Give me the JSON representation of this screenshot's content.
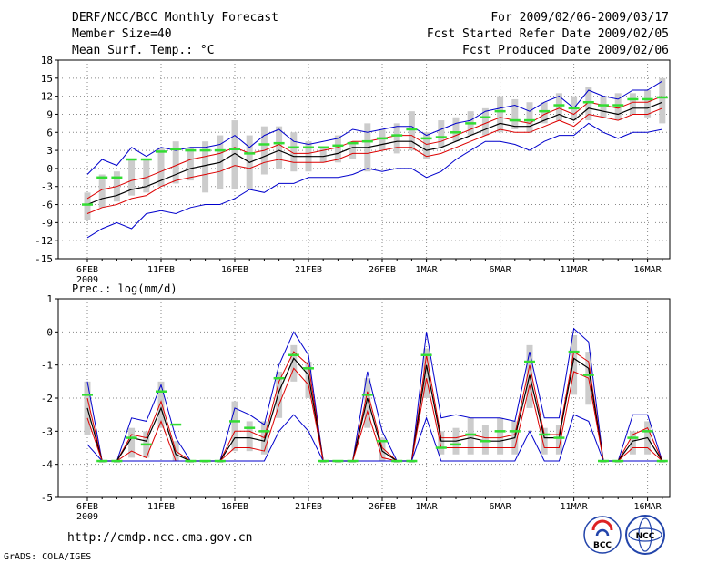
{
  "header": {
    "title": "DERF/NCC/BCC Monthly Forecast",
    "member_size": "Member Size=40",
    "variable": "Mean Surf. Temp.: °C",
    "period": "For 2009/02/06-2009/03/17",
    "started": "Fcst Started Refer Date 2009/02/05",
    "produced": "Fcst Produced Date 2009/02/06"
  },
  "footer": {
    "url": "http://cmdp.ncc.cma.gov.cn",
    "credit": "GrADS: COLA/IGES",
    "logo_bcc": "BCC",
    "logo_ncc": "NCC"
  },
  "colors": {
    "envelope": "#0000cc",
    "quartile": "#dd0000",
    "median": "#000000",
    "observed": "#33dd33",
    "box": "#cccccc",
    "grid": "#888888"
  },
  "x_labels": [
    {
      "day": 0,
      "label": "6FEB",
      "sub": "2009"
    },
    {
      "day": 5,
      "label": "11FEB"
    },
    {
      "day": 10,
      "label": "16FEB"
    },
    {
      "day": 15,
      "label": "21FEB"
    },
    {
      "day": 20,
      "label": "26FEB"
    },
    {
      "day": 23,
      "label": "1MAR"
    },
    {
      "day": 28,
      "label": "6MAR"
    },
    {
      "day": 33,
      "label": "11MAR"
    },
    {
      "day": 38,
      "label": "16MAR"
    }
  ],
  "chart_data": [
    {
      "type": "line",
      "title": "Mean Surf. Temp.: °C",
      "ylim": [
        -15,
        18
      ],
      "yticks": [
        -15,
        -12,
        -9,
        -6,
        -3,
        0,
        3,
        6,
        9,
        12,
        15,
        18
      ],
      "grid": true,
      "x": [
        0,
        1,
        2,
        3,
        4,
        5,
        6,
        7,
        8,
        9,
        10,
        11,
        12,
        13,
        14,
        15,
        16,
        17,
        18,
        19,
        20,
        21,
        22,
        23,
        24,
        25,
        26,
        27,
        28,
        29,
        30,
        31,
        32,
        33,
        34,
        35,
        36,
        37,
        38,
        39
      ],
      "series": [
        {
          "name": "max",
          "values": [
            -1.0,
            1.5,
            0.5,
            3.5,
            2.0,
            3.5,
            3.0,
            3.5,
            3.5,
            4.0,
            5.5,
            3.5,
            5.5,
            6.5,
            4.5,
            4.0,
            4.5,
            5.0,
            6.5,
            6.0,
            6.5,
            7.0,
            7.0,
            5.5,
            6.5,
            7.5,
            8.0,
            9.5,
            10.0,
            10.5,
            9.5,
            11.0,
            12.0,
            10.0,
            13.0,
            12.0,
            11.5,
            13.0,
            13.0,
            14.5
          ]
        },
        {
          "name": "q75",
          "values": [
            -5.0,
            -3.5,
            -3.0,
            -2.0,
            -1.5,
            -0.5,
            0.5,
            1.5,
            2.0,
            2.5,
            3.5,
            2.5,
            3.0,
            4.0,
            2.5,
            2.5,
            3.0,
            3.5,
            4.5,
            4.5,
            5.0,
            5.5,
            5.5,
            4.0,
            4.5,
            5.5,
            6.5,
            7.5,
            8.5,
            8.0,
            7.5,
            9.0,
            10.0,
            9.0,
            11.0,
            10.5,
            10.0,
            11.0,
            11.0,
            12.0
          ]
        },
        {
          "name": "median",
          "values": [
            -6.0,
            -5.0,
            -4.5,
            -3.5,
            -3.0,
            -2.0,
            -1.0,
            0.0,
            0.5,
            1.0,
            2.5,
            1.0,
            2.0,
            3.0,
            2.0,
            2.0,
            2.0,
            2.5,
            3.5,
            3.5,
            4.0,
            4.5,
            4.5,
            3.0,
            3.5,
            4.5,
            5.5,
            6.5,
            7.5,
            7.0,
            7.0,
            8.0,
            9.0,
            8.0,
            10.0,
            9.5,
            9.0,
            10.0,
            10.0,
            11.0
          ]
        },
        {
          "name": "q25",
          "values": [
            -7.5,
            -6.5,
            -6.0,
            -5.0,
            -4.5,
            -3.0,
            -2.0,
            -1.5,
            -1.0,
            -0.5,
            0.5,
            0.0,
            1.0,
            1.5,
            1.0,
            1.0,
            1.0,
            1.5,
            2.5,
            2.5,
            3.0,
            3.5,
            3.5,
            2.0,
            2.5,
            3.5,
            4.5,
            5.5,
            6.5,
            6.0,
            6.0,
            7.0,
            8.0,
            7.0,
            9.0,
            8.5,
            8.0,
            9.0,
            9.0,
            10.0
          ]
        },
        {
          "name": "min",
          "values": [
            -11.5,
            -10.0,
            -9.0,
            -10.0,
            -7.5,
            -7.0,
            -7.5,
            -6.5,
            -6.0,
            -6.0,
            -5.0,
            -3.5,
            -4.0,
            -2.5,
            -2.5,
            -1.5,
            -1.5,
            -1.5,
            -1.0,
            0.0,
            -0.5,
            0.0,
            0.0,
            -1.5,
            -0.5,
            1.5,
            3.0,
            4.5,
            4.5,
            4.0,
            3.0,
            4.5,
            5.5,
            5.5,
            7.5,
            6.0,
            5.0,
            6.0,
            6.0,
            6.5
          ]
        },
        {
          "name": "obs",
          "values": [
            -6.0,
            -1.5,
            -1.5,
            1.5,
            1.5,
            2.8,
            3.2,
            3.0,
            3.0,
            3.0,
            3.2,
            2.5,
            4.0,
            4.2,
            3.5,
            3.5,
            3.5,
            3.8,
            4.2,
            4.5,
            5.0,
            5.5,
            6.5,
            5.0,
            5.2,
            6.0,
            7.5,
            8.5,
            9.5,
            8.0,
            8.0,
            9.5,
            10.5,
            10.0,
            11.0,
            10.5,
            10.5,
            11.5,
            11.5,
            11.8
          ]
        }
      ],
      "boxes": {
        "low": [
          -8.5,
          -6.5,
          -5.5,
          -4.5,
          -4.0,
          -3.0,
          -2.5,
          -2.0,
          -4.0,
          -3.5,
          -3.5,
          -3.5,
          -1.0,
          0.0,
          -0.5,
          -0.5,
          1.0,
          1.0,
          1.5,
          -0.5,
          3.0,
          2.5,
          3.0,
          1.5,
          3.5,
          4.5,
          5.5,
          5.5,
          6.0,
          6.5,
          6.0,
          7.5,
          8.0,
          8.0,
          8.0,
          8.5,
          8.0,
          9.0,
          8.5,
          7.5
        ],
        "high": [
          -4.0,
          -1.0,
          -0.5,
          1.5,
          1.5,
          3.5,
          4.5,
          3.5,
          4.5,
          5.5,
          8.0,
          5.5,
          7.0,
          7.0,
          6.0,
          4.5,
          3.5,
          5.5,
          4.5,
          7.5,
          6.5,
          7.5,
          9.5,
          6.0,
          8.0,
          8.5,
          9.5,
          10.0,
          12.0,
          11.5,
          11.0,
          11.0,
          12.5,
          12.0,
          13.5,
          12.0,
          12.5,
          12.5,
          13.0,
          15.0
        ]
      }
    },
    {
      "type": "line",
      "title": "Prec.: log(mm/d)",
      "ylim": [
        -5,
        1
      ],
      "yticks": [
        -5,
        -4,
        -3,
        -2,
        -1,
        0,
        1
      ],
      "grid": true,
      "x": [
        0,
        1,
        2,
        3,
        4,
        5,
        6,
        7,
        8,
        9,
        10,
        11,
        12,
        13,
        14,
        15,
        16,
        17,
        18,
        19,
        20,
        21,
        22,
        23,
        24,
        25,
        26,
        27,
        28,
        29,
        30,
        31,
        32,
        33,
        34,
        35,
        36,
        37,
        38,
        39
      ],
      "series": [
        {
          "name": "max",
          "values": [
            -1.5,
            -3.9,
            -3.9,
            -2.6,
            -2.7,
            -1.6,
            -3.2,
            -3.9,
            -3.9,
            -3.9,
            -2.3,
            -2.5,
            -2.8,
            -1.0,
            0.0,
            -0.7,
            -3.9,
            -3.9,
            -3.9,
            -1.2,
            -3.0,
            -3.9,
            -3.9,
            0.0,
            -2.6,
            -2.5,
            -2.6,
            -2.6,
            -2.6,
            -2.7,
            -0.6,
            -2.6,
            -2.6,
            0.1,
            -0.3,
            -3.9,
            -3.9,
            -2.5,
            -2.5,
            -3.9
          ]
        },
        {
          "name": "q75",
          "values": [
            -2.0,
            -3.9,
            -3.9,
            -3.1,
            -3.2,
            -2.1,
            -3.6,
            -3.9,
            -3.9,
            -3.9,
            -3.0,
            -3.0,
            -3.2,
            -1.5,
            -0.6,
            -1.0,
            -3.9,
            -3.9,
            -3.9,
            -1.8,
            -3.5,
            -3.9,
            -3.9,
            -0.7,
            -3.2,
            -3.2,
            -3.1,
            -3.2,
            -3.2,
            -3.1,
            -1.0,
            -3.1,
            -3.1,
            -0.6,
            -0.9,
            -3.9,
            -3.9,
            -3.1,
            -2.9,
            -3.9
          ]
        },
        {
          "name": "median",
          "values": [
            -2.3,
            -3.9,
            -3.9,
            -3.2,
            -3.3,
            -2.3,
            -3.7,
            -3.9,
            -3.9,
            -3.9,
            -3.2,
            -3.2,
            -3.3,
            -1.8,
            -0.8,
            -1.3,
            -3.9,
            -3.9,
            -3.9,
            -2.0,
            -3.6,
            -3.9,
            -3.9,
            -1.0,
            -3.3,
            -3.3,
            -3.2,
            -3.3,
            -3.3,
            -3.2,
            -1.3,
            -3.2,
            -3.2,
            -0.8,
            -1.1,
            -3.9,
            -3.9,
            -3.3,
            -3.2,
            -3.9
          ]
        },
        {
          "name": "q25",
          "values": [
            -2.6,
            -3.9,
            -3.9,
            -3.6,
            -3.8,
            -2.7,
            -3.9,
            -3.9,
            -3.9,
            -3.9,
            -3.5,
            -3.5,
            -3.6,
            -2.2,
            -1.1,
            -1.6,
            -3.9,
            -3.9,
            -3.9,
            -2.4,
            -3.8,
            -3.9,
            -3.9,
            -1.4,
            -3.5,
            -3.5,
            -3.5,
            -3.5,
            -3.5,
            -3.5,
            -1.6,
            -3.5,
            -3.5,
            -1.2,
            -1.4,
            -3.9,
            -3.9,
            -3.5,
            -3.5,
            -3.9
          ]
        },
        {
          "name": "min",
          "values": [
            -3.4,
            -3.9,
            -3.9,
            -3.9,
            -3.9,
            -3.9,
            -3.9,
            -3.9,
            -3.9,
            -3.9,
            -3.9,
            -3.9,
            -3.9,
            -3.0,
            -2.5,
            -3.0,
            -3.9,
            -3.9,
            -3.9,
            -3.9,
            -3.9,
            -3.9,
            -3.9,
            -2.6,
            -3.9,
            -3.9,
            -3.9,
            -3.9,
            -3.9,
            -3.9,
            -3.0,
            -3.9,
            -3.9,
            -2.5,
            -2.7,
            -3.9,
            -3.9,
            -3.9,
            -3.9,
            -3.9
          ]
        },
        {
          "name": "obs",
          "values": [
            -1.9,
            -3.9,
            -3.9,
            -3.2,
            -3.4,
            -1.8,
            -2.8,
            -3.9,
            -3.9,
            -3.9,
            -2.7,
            -2.9,
            -3.0,
            -1.4,
            -0.7,
            -1.1,
            -3.9,
            -3.9,
            -3.9,
            -1.9,
            -3.3,
            -3.9,
            -3.9,
            -0.7,
            -3.5,
            -3.4,
            -3.1,
            -3.3,
            -3.0,
            -3.0,
            -0.9,
            -3.1,
            -3.2,
            -0.6,
            -1.3,
            -3.9,
            -3.9,
            -3.2,
            -3.0,
            -3.9
          ]
        }
      ],
      "boxes": {
        "low": [
          -3.1,
          -3.9,
          -3.9,
          -3.8,
          -3.8,
          -2.9,
          -3.9,
          -3.9,
          -3.9,
          -3.9,
          -3.6,
          -3.6,
          -3.7,
          -2.6,
          -1.5,
          -2.0,
          -3.9,
          -3.9,
          -3.9,
          -2.9,
          -3.9,
          -3.9,
          -3.9,
          -2.0,
          -3.7,
          -3.7,
          -3.7,
          -3.7,
          -3.7,
          -3.7,
          -2.3,
          -3.7,
          -3.7,
          -1.9,
          -2.2,
          -3.9,
          -3.9,
          -3.7,
          -3.7,
          -3.9
        ],
        "high": [
          -1.5,
          -3.9,
          -3.9,
          -2.9,
          -3.0,
          -1.5,
          -3.3,
          -3.9,
          -3.9,
          -3.9,
          -2.1,
          -2.7,
          -2.7,
          -1.2,
          -0.4,
          -0.9,
          -3.9,
          -3.9,
          -3.9,
          -1.4,
          -3.2,
          -3.9,
          -3.9,
          -0.5,
          -3.0,
          -2.9,
          -2.6,
          -2.8,
          -2.6,
          -2.7,
          -0.4,
          -2.9,
          -2.8,
          -0.1,
          -0.6,
          -3.9,
          -3.9,
          -3.0,
          -2.7,
          -3.9
        ]
      }
    }
  ]
}
